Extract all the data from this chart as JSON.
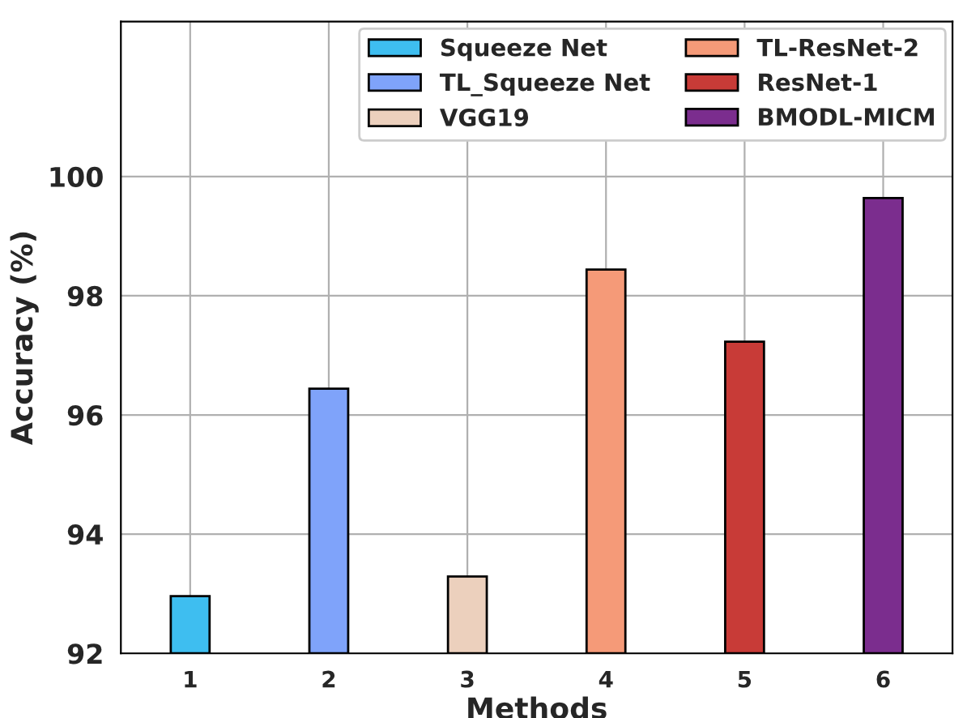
{
  "chart_data": {
    "type": "bar",
    "xlabel": "Methods",
    "ylabel": "Accuracy (%)",
    "categories": [
      "1",
      "2",
      "3",
      "4",
      "5",
      "6"
    ],
    "series": [
      {
        "name": "Squeeze Net",
        "color": "#3ebef0",
        "values": [
          92.96,
          null,
          null,
          null,
          null,
          null
        ]
      },
      {
        "name": "TL_Squeeze Net",
        "color": "#7fa3fa",
        "values": [
          null,
          96.44,
          null,
          null,
          null,
          null
        ]
      },
      {
        "name": "VGG19",
        "color": "#ecd0bd",
        "values": [
          null,
          null,
          93.29,
          null,
          null,
          null
        ]
      },
      {
        "name": "TL-ResNet-2",
        "color": "#f59a78",
        "values": [
          null,
          null,
          null,
          98.44,
          null,
          null
        ]
      },
      {
        "name": "ResNet-1",
        "color": "#c83b37",
        "values": [
          null,
          null,
          null,
          null,
          97.23,
          null
        ]
      },
      {
        "name": "BMODL-MICM",
        "color": "#7b2d8e",
        "values": [
          null,
          null,
          null,
          null,
          null,
          99.64
        ]
      }
    ],
    "ylim": [
      92,
      102.6
    ],
    "yticks": [
      92,
      94,
      96,
      98,
      100
    ],
    "grid": true,
    "legend": "top right"
  }
}
